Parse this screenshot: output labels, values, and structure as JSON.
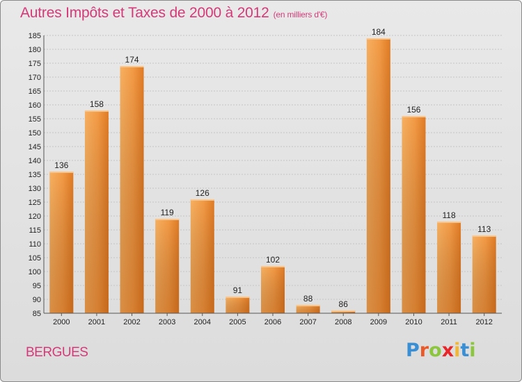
{
  "chart_data": {
    "type": "bar",
    "title": "Autres Impôts et Taxes de 2000 à 2012",
    "subtitle": "(en milliers d'€)",
    "categories": [
      "2000",
      "2001",
      "2002",
      "2003",
      "2004",
      "2005",
      "2006",
      "2007",
      "2008",
      "2009",
      "2010",
      "2011",
      "2012"
    ],
    "values": [
      136,
      158,
      174,
      119,
      126,
      91,
      102,
      88,
      86,
      184,
      156,
      118,
      113
    ],
    "ylim": [
      85,
      185
    ],
    "yticks": [
      85,
      90,
      95,
      100,
      105,
      110,
      115,
      120,
      125,
      130,
      135,
      140,
      145,
      150,
      155,
      160,
      165,
      170,
      175,
      180,
      185
    ],
    "xlabel": "",
    "ylabel": "",
    "grid": true,
    "bar_color": "#f08a2c"
  },
  "location": "BERGUES",
  "brand": {
    "letters": [
      {
        "ch": "P",
        "color": "#3a8fd4"
      },
      {
        "ch": "r",
        "color": "#e85a2a"
      },
      {
        "ch": "o",
        "color": "#8cc63f"
      },
      {
        "ch": "x",
        "color": "#e8262a"
      },
      {
        "ch": "i",
        "color": "#f2b632"
      },
      {
        "ch": "t",
        "color": "#3a8fd4"
      },
      {
        "ch": "i",
        "color": "#8cc63f"
      }
    ]
  }
}
